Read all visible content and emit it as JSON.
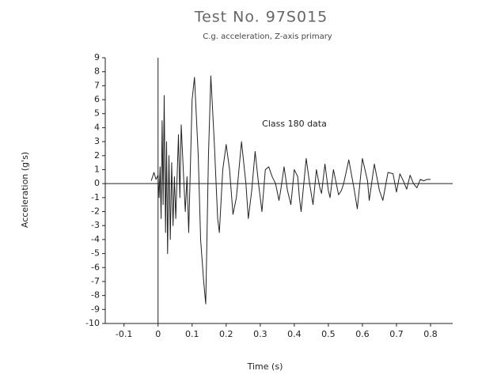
{
  "chart_data": {
    "type": "line",
    "title": "Test No. 97S015",
    "subtitle": "C.g. acceleration, Z-axis primary",
    "x_label": "Time (s)",
    "y_label": "Acceleration (g's)",
    "annotation": "Class 180 data",
    "xlim": [
      -0.155,
      0.865
    ],
    "ylim": [
      -10,
      9
    ],
    "xticks": [
      -0.1,
      0,
      0.1,
      0.2,
      0.3,
      0.4,
      0.5,
      0.6,
      0.7,
      0.8
    ],
    "yticks": [
      -10,
      -9,
      -8,
      -7,
      -6,
      -5,
      -4,
      -3,
      -2,
      -1,
      0,
      1,
      2,
      3,
      4,
      5,
      6,
      7,
      8,
      9
    ],
    "color": "#222222",
    "x": [
      -0.02,
      -0.012,
      -0.006,
      0.0,
      0.003,
      0.006,
      0.009,
      0.012,
      0.015,
      0.018,
      0.022,
      0.025,
      0.028,
      0.032,
      0.036,
      0.04,
      0.044,
      0.048,
      0.052,
      0.06,
      0.064,
      0.068,
      0.075,
      0.08,
      0.085,
      0.09,
      0.1,
      0.107,
      0.118,
      0.125,
      0.134,
      0.14,
      0.148,
      0.155,
      0.165,
      0.175,
      0.18,
      0.19,
      0.2,
      0.21,
      0.22,
      0.23,
      0.245,
      0.258,
      0.265,
      0.275,
      0.285,
      0.295,
      0.305,
      0.315,
      0.325,
      0.335,
      0.345,
      0.355,
      0.36,
      0.37,
      0.38,
      0.39,
      0.4,
      0.41,
      0.415,
      0.42,
      0.435,
      0.445,
      0.455,
      0.465,
      0.475,
      0.48,
      0.49,
      0.5,
      0.505,
      0.515,
      0.53,
      0.538,
      0.545,
      0.56,
      0.575,
      0.585,
      0.6,
      0.615,
      0.62,
      0.635,
      0.65,
      0.66,
      0.675,
      0.69,
      0.7,
      0.71,
      0.72,
      0.73,
      0.74,
      0.75,
      0.76,
      0.77,
      0.78,
      0.79,
      0.8
    ],
    "values": [
      0.2,
      0.8,
      0.3,
      0.6,
      -1,
      1.2,
      -2.5,
      4.5,
      -1.5,
      6.3,
      -3.5,
      3,
      -5,
      2,
      -4,
      1.5,
      -3,
      0.5,
      -2.5,
      3.5,
      -1,
      4.2,
      0.5,
      -2,
      0.5,
      -3.5,
      6,
      7.6,
      2,
      -4,
      -7,
      -8.6,
      2,
      7.7,
      3,
      -2.5,
      -3.5,
      1,
      2.8,
      1,
      -2.2,
      -1,
      3,
      0,
      -2.5,
      -0.5,
      2.3,
      0,
      -2,
      1,
      1.2,
      0.5,
      0,
      -1.2,
      -0.5,
      1.2,
      -0.5,
      -1.5,
      1,
      0.5,
      -1,
      -2,
      1.8,
      0,
      -1.5,
      1,
      -0.3,
      -0.7,
      1.4,
      -0.5,
      -1,
      1,
      -0.8,
      -0.5,
      0,
      1.7,
      -0.3,
      -1.8,
      1.8,
      0.2,
      -1.2,
      1.4,
      -0.5,
      -1.2,
      0.8,
      0.7,
      -0.6,
      0.7,
      0.2,
      -0.4,
      0.6,
      0,
      -0.3,
      0.3,
      0.2,
      0.3,
      0.3
    ]
  }
}
